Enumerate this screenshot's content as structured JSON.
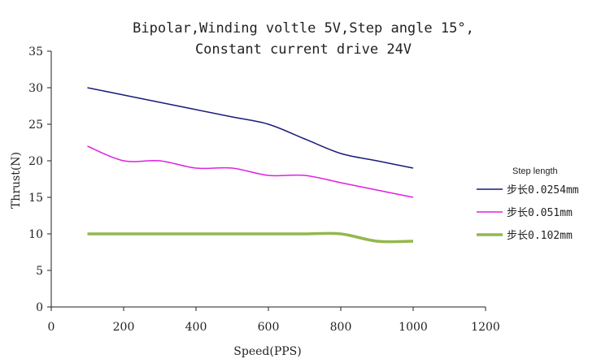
{
  "chart_data": {
    "type": "line",
    "title_line1": "Bipolar,Winding voltle 5V,Step angle 15°,",
    "title_line2": "Constant current drive 24V",
    "xlabel": "Speed(PPS)",
    "ylabel": "Thrust(N)",
    "xlim": [
      0,
      1200
    ],
    "ylim": [
      0,
      35
    ],
    "xticks": [
      0,
      200,
      400,
      600,
      800,
      1000,
      1200
    ],
    "yticks": [
      0,
      5,
      10,
      15,
      20,
      25,
      30,
      35
    ],
    "grid": false,
    "legend_title": "Step length",
    "legend_position": "right",
    "series": [
      {
        "name": "步长0.0254mm",
        "color": "#1a1a7a",
        "x": [
          100,
          200,
          300,
          400,
          500,
          600,
          700,
          800,
          900,
          1000
        ],
        "y": [
          30,
          29,
          28,
          27,
          26,
          25,
          23,
          21,
          20,
          19
        ]
      },
      {
        "name": "步长0.051mm",
        "color": "#e020e0",
        "x": [
          100,
          200,
          300,
          400,
          500,
          600,
          700,
          800,
          900,
          1000
        ],
        "y": [
          22,
          20,
          20,
          19,
          19,
          18,
          18,
          17,
          16,
          15
        ]
      },
      {
        "name": "步长0.102mm",
        "color": "#92b84c",
        "x": [
          100,
          200,
          300,
          400,
          500,
          600,
          700,
          800,
          900,
          1000
        ],
        "y": [
          10,
          10,
          10,
          10,
          10,
          10,
          10,
          10,
          9,
          9
        ]
      }
    ]
  }
}
